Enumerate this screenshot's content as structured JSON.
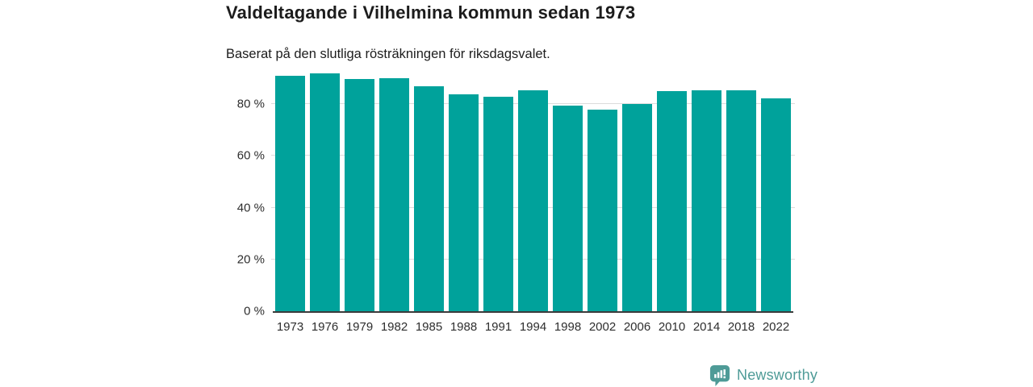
{
  "chart_data": {
    "type": "bar",
    "title": "Valdeltagande i Vilhelmina kommun sedan 1973",
    "subtitle": "Baserat på den slutliga rösträkningen för riksdagsvalet.",
    "categories": [
      "1973",
      "1976",
      "1979",
      "1982",
      "1985",
      "1988",
      "1991",
      "1994",
      "1998",
      "2002",
      "2006",
      "2010",
      "2014",
      "2018",
      "2022"
    ],
    "values": [
      91.0,
      91.8,
      89.6,
      90.0,
      87.0,
      83.7,
      83.0,
      85.5,
      79.3,
      78.0,
      80.2,
      84.9,
      85.3,
      85.4,
      82.3
    ],
    "unit": "%",
    "xlabel": "",
    "ylabel": "",
    "ylim": [
      0,
      100
    ],
    "yticks": [
      0,
      20,
      40,
      60,
      80
    ],
    "ytick_suffix": " %",
    "grid": true,
    "legend": "none",
    "bar_color": "#00a29b",
    "axis_color": "#3b3b3b",
    "gridline_color": "#dcdcdc",
    "tick_label_color": "#2e2e2e"
  },
  "branding": {
    "label": "Newsworthy",
    "color": "#4e9b97"
  }
}
